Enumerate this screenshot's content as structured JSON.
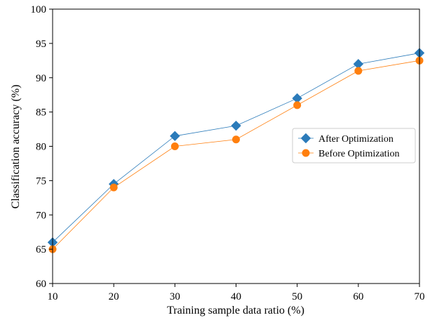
{
  "chart_data": {
    "type": "line",
    "xlabel": "Training sample data ratio (%)",
    "ylabel": "Classification accuracy (%)",
    "xlim": [
      10,
      70
    ],
    "ylim": [
      60,
      100
    ],
    "xticks": [
      10,
      20,
      30,
      40,
      50,
      60,
      70
    ],
    "yticks": [
      60,
      65,
      70,
      75,
      80,
      85,
      90,
      95,
      100
    ],
    "grid": false,
    "legend_position": "right",
    "x": [
      10,
      20,
      30,
      40,
      50,
      60,
      70
    ],
    "series": [
      {
        "name": "After Optimization",
        "color": "#2b7bba",
        "marker": "diamond",
        "values": [
          66,
          74.5,
          81.5,
          83,
          87,
          92,
          93.6
        ]
      },
      {
        "name": "Before Optimization",
        "color": "#ff7f0e",
        "marker": "circle",
        "values": [
          65,
          74,
          80,
          81,
          86,
          91,
          92.5
        ]
      }
    ]
  }
}
